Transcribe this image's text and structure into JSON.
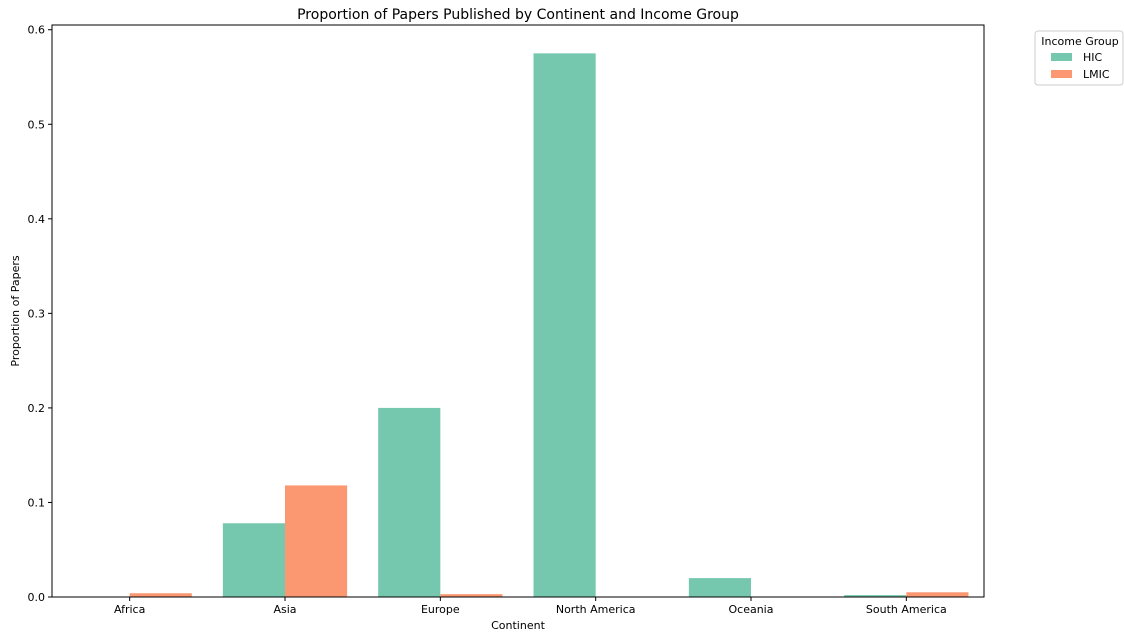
{
  "chart_data": {
    "type": "bar",
    "title": "Proportion of Papers Published by Continent and Income Group",
    "xlabel": "Continent",
    "ylabel": "Proportion of Papers",
    "categories": [
      "Africa",
      "Asia",
      "Europe",
      "North America",
      "Oceania",
      "South America"
    ],
    "series": [
      {
        "name": "HIC",
        "color": "#66c2a5",
        "values": [
          0,
          0.078,
          0.2,
          0.575,
          0.02,
          0.002
        ]
      },
      {
        "name": "LMIC",
        "color": "#fc8d62",
        "values": [
          0.004,
          0.118,
          0.003,
          0,
          0,
          0.005
        ]
      }
    ],
    "ylim": [
      0,
      0.605
    ],
    "yticks": [
      0.0,
      0.1,
      0.2,
      0.3,
      0.4,
      0.5,
      0.6
    ],
    "ytick_labels": [
      "0.0",
      "0.1",
      "0.2",
      "0.3",
      "0.4",
      "0.5",
      "0.6"
    ],
    "legend": {
      "title": "Income Group",
      "placement": "outside-top-right"
    },
    "grid": false
  }
}
